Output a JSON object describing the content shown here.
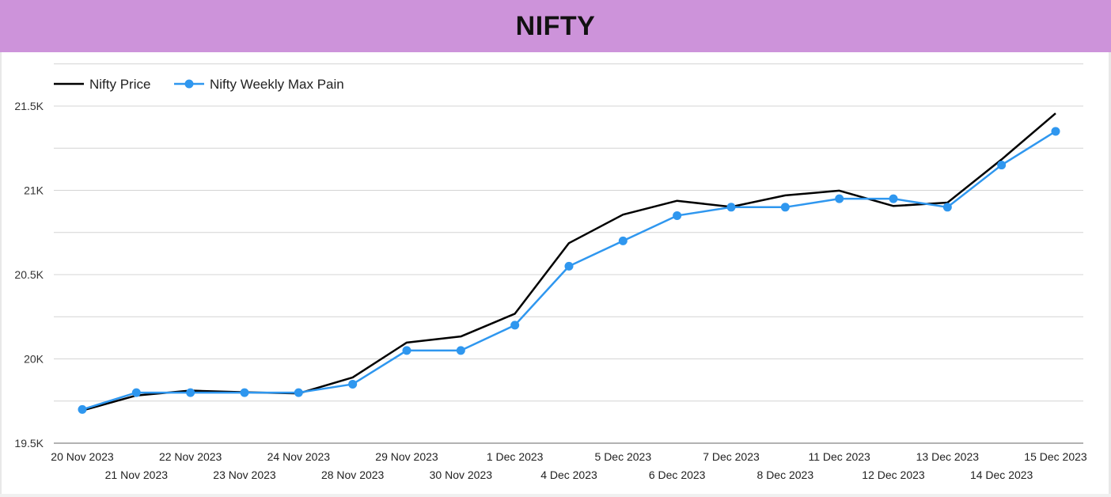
{
  "header": {
    "title": "NIFTY",
    "background": "#cd93da"
  },
  "chart_data": {
    "type": "line",
    "title": "NIFTY",
    "xlabel": "",
    "ylabel": "",
    "ylim": [
      19500,
      21750
    ],
    "yticks": [
      19500,
      20000,
      20500,
      21000,
      21500
    ],
    "ytick_labels": [
      "19.5K",
      "20K",
      "20.5K",
      "21K",
      "21.5K"
    ],
    "grid": true,
    "legend_placement": "top-left",
    "categories": [
      "20 Nov 2023",
      "21 Nov 2023",
      "22 Nov 2023",
      "23 Nov 2023",
      "24 Nov 2023",
      "28 Nov 2023",
      "29 Nov 2023",
      "30 Nov 2023",
      "1 Dec 2023",
      "4 Dec 2023",
      "5 Dec 2023",
      "6 Dec 2023",
      "7 Dec 2023",
      "8 Dec 2023",
      "11 Dec 2023",
      "12 Dec 2023",
      "13 Dec 2023",
      "14 Dec 2023",
      "15 Dec 2023"
    ],
    "series": [
      {
        "name": "Nifty Price",
        "color": "#000000",
        "markers": false,
        "values": [
          19694,
          19783,
          19812,
          19802,
          19795,
          19890,
          20097,
          20133,
          20268,
          20687,
          20856,
          20938,
          20902,
          20970,
          20998,
          20907,
          20927,
          21183,
          21457
        ]
      },
      {
        "name": "Nifty Weekly Max Pain",
        "color": "#2f97ef",
        "markers": true,
        "values": [
          19700,
          19800,
          19800,
          19800,
          19800,
          19850,
          20050,
          20050,
          20200,
          20550,
          20700,
          20850,
          20900,
          20900,
          20950,
          20950,
          20900,
          21150,
          21350
        ]
      }
    ]
  }
}
